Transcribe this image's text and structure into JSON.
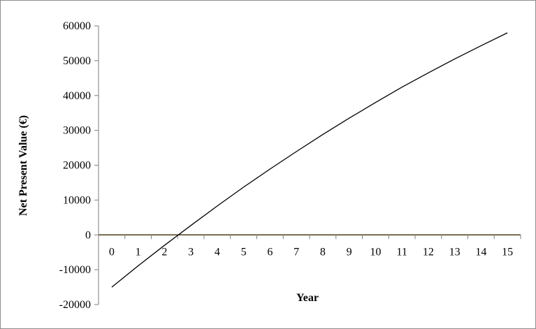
{
  "chart_data": {
    "type": "line",
    "title": "",
    "xlabel": "Year",
    "ylabel": "Net Present Value (€)",
    "x": [
      0,
      1,
      2,
      3,
      4,
      5,
      6,
      7,
      8,
      9,
      10,
      11,
      12,
      13,
      14,
      15
    ],
    "series": [
      {
        "values": [
          -15000,
          -8900,
          -3000,
          2700,
          8300,
          13700,
          18900,
          23900,
          28800,
          33500,
          38000,
          42400,
          46500,
          50500,
          54300,
          58000
        ]
      }
    ],
    "ylim": [
      -20000,
      60000
    ],
    "yticks": [
      -20000,
      -10000,
      0,
      10000,
      20000,
      30000,
      40000,
      50000,
      60000
    ],
    "xticks": [
      0,
      1,
      2,
      3,
      4,
      5,
      6,
      7,
      8,
      9,
      10,
      11,
      12,
      13,
      14,
      15
    ],
    "grid": false,
    "legend": "none",
    "colors": {
      "line": "#000000",
      "zero_axis": "#4a3d14",
      "frame": "#8c8c8c",
      "axis": "#7f7f7f"
    }
  }
}
